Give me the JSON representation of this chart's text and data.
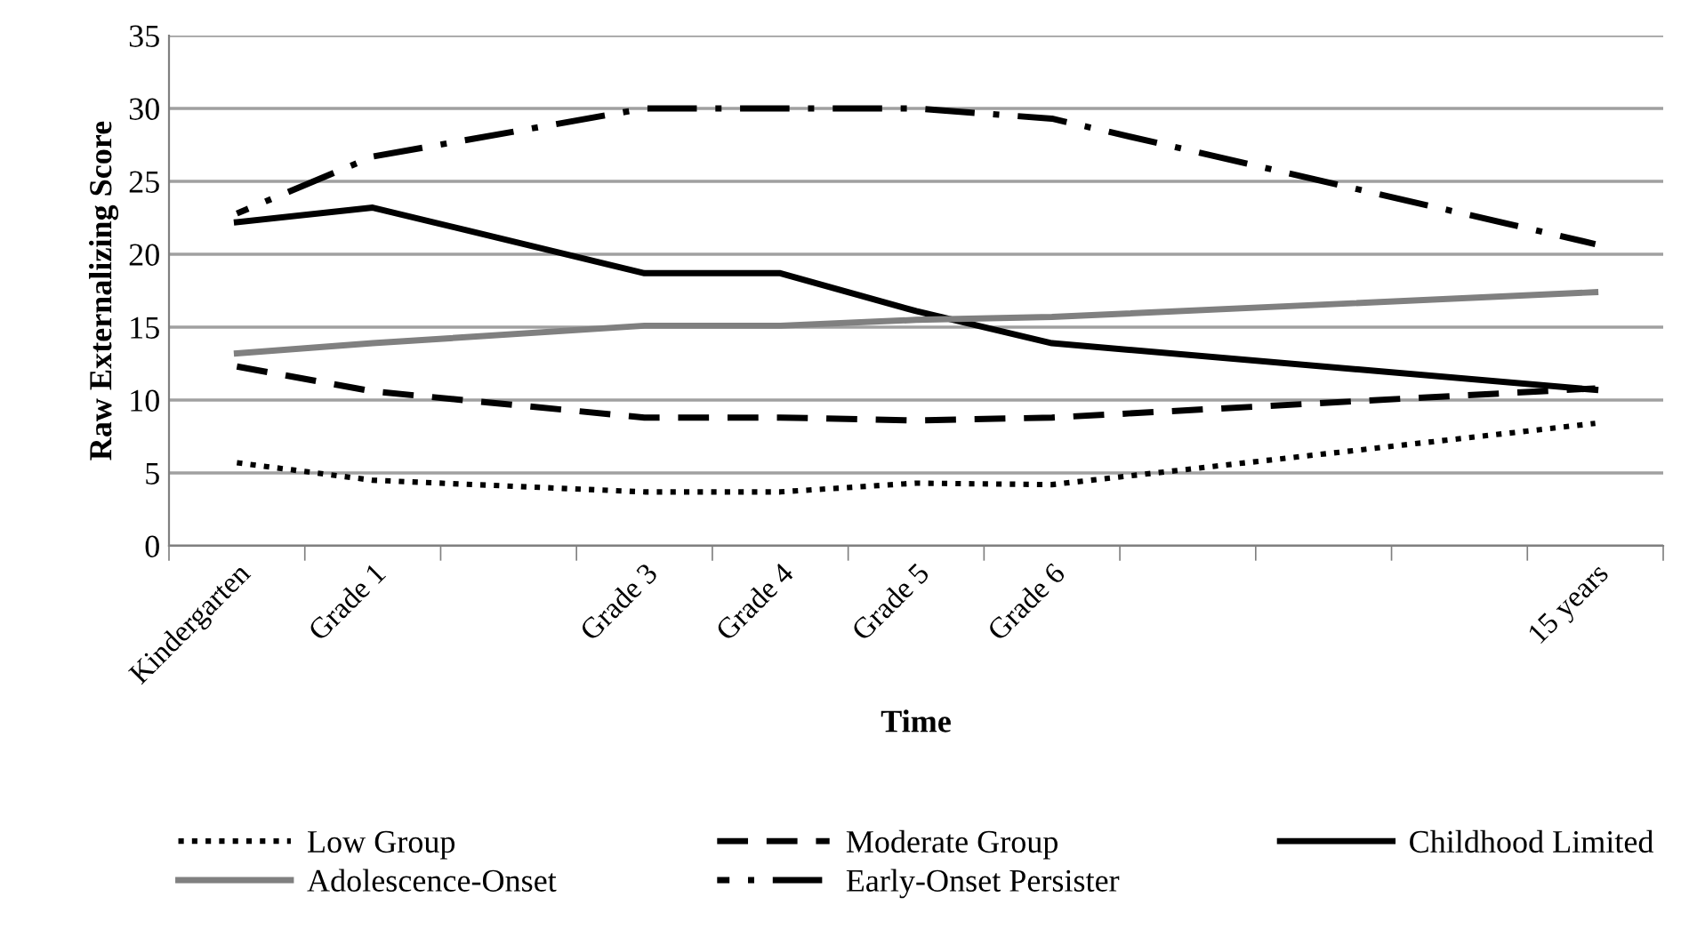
{
  "chart_data": {
    "type": "line",
    "ylabel": "Raw Externalizing Score",
    "xlabel": "Time",
    "categories": [
      "Kindergarten",
      "Grade 1",
      null,
      "Grade 3",
      "Grade 4",
      "Grade 5",
      "Grade 6",
      null,
      null,
      null,
      "15 years"
    ],
    "series": [
      {
        "name": "Low Group",
        "color": "#000000",
        "line_style": "dotted",
        "values": [
          5.7,
          4.5,
          null,
          3.7,
          3.7,
          4.3,
          4.2,
          null,
          null,
          null,
          8.4
        ]
      },
      {
        "name": "Moderate Group",
        "color": "#000000",
        "line_style": "dashed",
        "values": [
          12.3,
          10.6,
          null,
          8.8,
          8.8,
          8.6,
          8.8,
          null,
          null,
          null,
          10.8
        ]
      },
      {
        "name": "Childhood Limited",
        "color": "#000000",
        "line_style": "solid",
        "values": [
          22.2,
          23.2,
          null,
          18.7,
          18.7,
          16.1,
          13.9,
          null,
          null,
          null,
          10.7
        ]
      },
      {
        "name": "Adolescence-Onset",
        "color": "#808080",
        "line_style": "solid",
        "values": [
          13.2,
          13.9,
          null,
          15.1,
          15.1,
          15.5,
          15.7,
          null,
          null,
          null,
          17.4
        ]
      },
      {
        "name": "Early-Onset Persister",
        "color": "#000000",
        "line_style": "dashdot",
        "values": [
          22.8,
          26.7,
          null,
          30.0,
          30.0,
          30.0,
          29.3,
          null,
          null,
          null,
          20.7
        ]
      }
    ],
    "ylim": [
      0,
      35
    ],
    "yticks": [
      0,
      5,
      10,
      15,
      20,
      25,
      30,
      35
    ],
    "grid": "y",
    "legend": "bottom",
    "marker": "none"
  }
}
